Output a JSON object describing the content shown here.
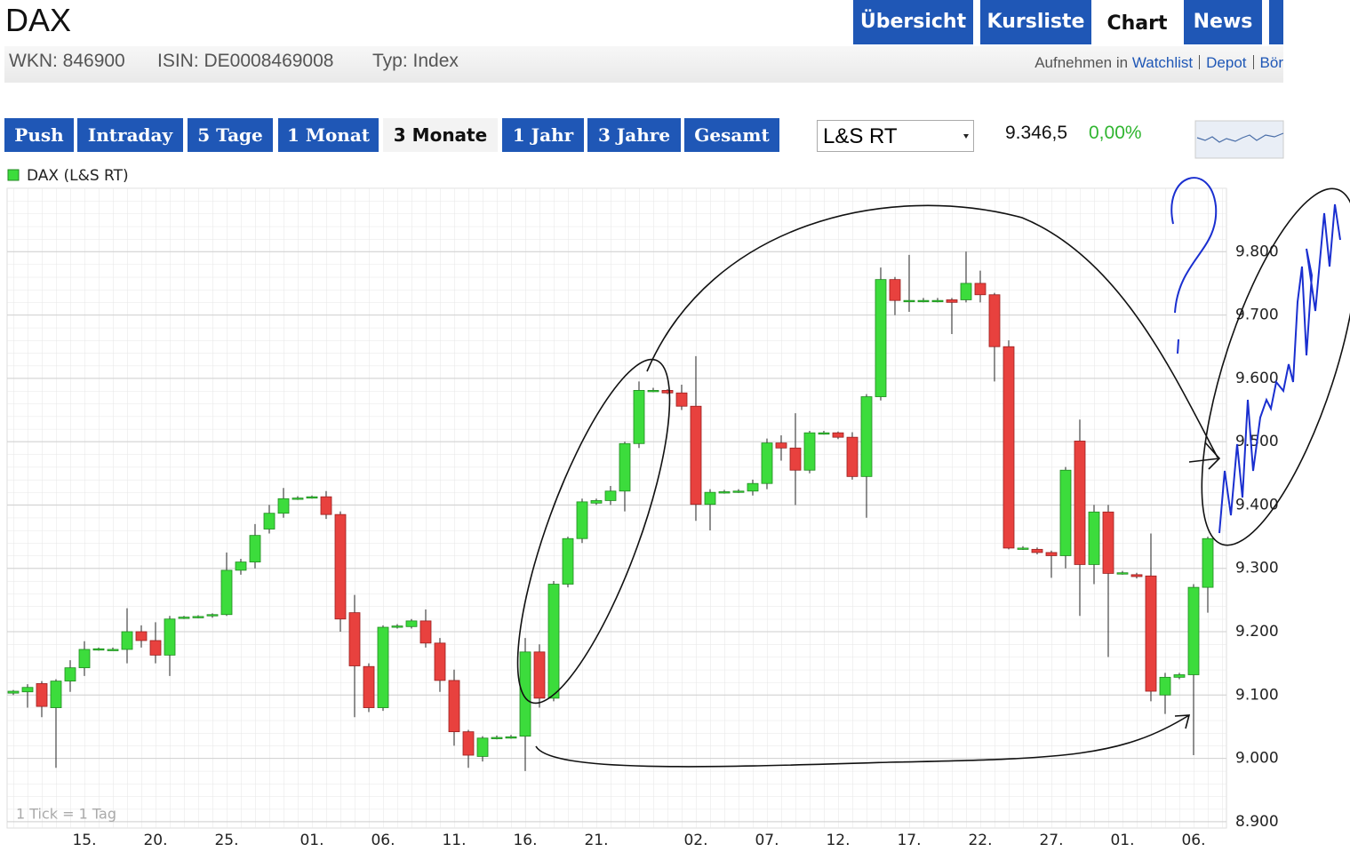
{
  "header": {
    "title": "DAX",
    "tabs": [
      {
        "label": "Übersicht",
        "active": false
      },
      {
        "label": "Kursliste",
        "active": false
      },
      {
        "label": "Chart",
        "active": true
      },
      {
        "label": "News",
        "active": false
      }
    ]
  },
  "info": {
    "wkn": "WKN: 846900",
    "isin": "ISIN: DE0008469008",
    "typ": "Typ: Index"
  },
  "actions": {
    "prefix": "Aufnehmen in",
    "links": [
      "Watchlist",
      "Depot",
      "Bör"
    ]
  },
  "toolbar": {
    "periods": [
      {
        "label": "Push",
        "active": false
      },
      {
        "label": "Intraday",
        "active": false
      },
      {
        "label": "5 Tage",
        "active": false
      },
      {
        "label": "1 Monat",
        "active": false
      },
      {
        "label": "3 Monate",
        "active": true
      },
      {
        "label": "1 Jahr",
        "active": false
      },
      {
        "label": "3 Jahre",
        "active": false
      },
      {
        "label": "Gesamt",
        "active": false
      }
    ],
    "exchange": "L&S RT",
    "price": "9.346,5",
    "change": "0,00%"
  },
  "chart_data": {
    "type": "candlestick",
    "note": "1 Tick = 1 Tag",
    "categories": [
      null,
      null,
      null,
      null,
      null,
      "15.",
      null,
      null,
      null,
      null,
      "20.",
      null,
      null,
      null,
      null,
      "25.",
      null,
      null,
      null,
      null,
      null,
      "01.",
      null,
      null,
      null,
      null,
      "06.",
      null,
      null,
      null,
      null,
      "11.",
      null,
      null,
      null,
      null,
      "16.",
      null,
      null,
      null,
      null,
      "21.",
      null,
      null,
      null,
      null,
      null,
      null,
      "02.",
      null,
      null,
      null,
      null,
      "07.",
      null,
      null,
      null,
      null,
      "12.",
      null,
      null,
      null,
      null,
      "17.",
      null,
      null,
      null,
      null,
      "22.",
      null,
      null,
      null,
      null,
      "27.",
      null,
      null,
      null,
      null,
      "01.",
      null,
      null,
      null,
      null,
      "06.",
      null
    ],
    "series": [
      {
        "name": "DAX (L&S RT)",
        "up_color": "#3cdc3c",
        "down_color": "#e8413e",
        "open": [
          9103,
          9105,
          9118,
          9080,
          9122,
          9143,
          9172,
          9172,
          9172,
          9200,
          9186,
          9163,
          9223,
          9224,
          9225,
          9227,
          9297,
          9310,
          9362,
          9387,
          9411,
          9413,
          9413,
          9385,
          9230,
          9145,
          9080,
          9209,
          9208,
          9217,
          9182,
          9123,
          9042,
          9003,
          9033,
          9034,
          9035,
          9168,
          9095,
          9275,
          9347,
          9403,
          9407,
          9422,
          9497,
          9581,
          9581,
          9577,
          9556,
          9401,
          9421,
          9422,
          9422,
          9434,
          9498,
          9490,
          9455,
          9514,
          9514,
          9507,
          9445,
          9571,
          9756,
          9723,
          9723,
          9723,
          9724,
          9724,
          9750,
          9732,
          9650,
          9332,
          9330,
          9325,
          9320,
          9501,
          9306,
          9389,
          9293,
          9290,
          9288,
          9100,
          9128,
          9132,
          9270
        ],
        "high": [
          9108,
          9117,
          9122,
          9125,
          9155,
          9185,
          9175,
          9175,
          9237,
          9210,
          9215,
          9225,
          9225,
          9226,
          9229,
          9325,
          9315,
          9370,
          9400,
          9427,
          9414,
          9415,
          9422,
          9390,
          9258,
          9150,
          9210,
          9212,
          9220,
          9235,
          9190,
          9140,
          9045,
          9035,
          9036,
          9037,
          9190,
          9180,
          9280,
          9350,
          9410,
          9410,
          9430,
          9500,
          9595,
          9585,
          9583,
          9590,
          9635,
          9425,
          9424,
          9425,
          9440,
          9505,
          9510,
          9545,
          9517,
          9517,
          9516,
          9515,
          9575,
          9775,
          9760,
          9795,
          9727,
          9727,
          9727,
          9800,
          9770,
          9735,
          9660,
          9335,
          9333,
          9328,
          9460,
          9535,
          9400,
          9400,
          9296,
          9293,
          9355,
          9135,
          9135,
          9275,
          9350
        ],
        "low": [
          9100,
          9080,
          9065,
          8985,
          9105,
          9130,
          9170,
          9170,
          9150,
          9175,
          9150,
          9130,
          9220,
          9221,
          9222,
          9225,
          9290,
          9300,
          9355,
          9380,
          9408,
          9410,
          9378,
          9200,
          9065,
          9073,
          9075,
          9205,
          9205,
          9175,
          9105,
          9020,
          8985,
          8995,
          9030,
          9031,
          8980,
          9080,
          9090,
          9270,
          9340,
          9400,
          9400,
          9390,
          9490,
          9578,
          9575,
          9550,
          9375,
          9360,
          9418,
          9419,
          9415,
          9425,
          9470,
          9400,
          9450,
          9511,
          9504,
          9440,
          9380,
          9565,
          9700,
          9705,
          9720,
          9720,
          9670,
          9720,
          9720,
          9595,
          9330,
          9329,
          9322,
          9285,
          9300,
          9225,
          9275,
          9160,
          9290,
          9284,
          9090,
          9070,
          9125,
          9005,
          9230
        ],
        "close": [
          9106,
          9112,
          9082,
          9122,
          9143,
          9172,
          9173,
          9172,
          9200,
          9186,
          9163,
          9220,
          9223,
          9224,
          9227,
          9297,
          9310,
          9352,
          9387,
          9410,
          9411,
          9413,
          9385,
          9220,
          9146,
          9080,
          9207,
          9209,
          9217,
          9182,
          9123,
          9042,
          9005,
          9032,
          9033,
          9034,
          9168,
          9095,
          9275,
          9347,
          9405,
          9407,
          9422,
          9497,
          9581,
          9581,
          9577,
          9556,
          9401,
          9420,
          9421,
          9422,
          9434,
          9498,
          9490,
          9455,
          9514,
          9514,
          9507,
          9445,
          9571,
          9756,
          9723,
          9723,
          9723,
          9723,
          9720,
          9750,
          9732,
          9650,
          9332,
          9332,
          9325,
          9320,
          9455,
          9306,
          9389,
          9292,
          9293,
          9287,
          9106,
          9128,
          9132,
          9270,
          9347
        ]
      }
    ],
    "ylim": [
      8890,
      9900
    ],
    "yticks": [
      {
        "value": 8900,
        "label": "8.900"
      },
      {
        "value": 9000,
        "label": "9.000"
      },
      {
        "value": 9100,
        "label": "9.100"
      },
      {
        "value": 9200,
        "label": "9.200"
      },
      {
        "value": 9300,
        "label": "9.300"
      },
      {
        "value": 9400,
        "label": "9.400"
      },
      {
        "value": 9500,
        "label": "9.500"
      },
      {
        "value": 9600,
        "label": "9.600"
      },
      {
        "value": 9700,
        "label": "9.700"
      },
      {
        "value": 9800,
        "label": "9.800"
      }
    ],
    "grid": true
  }
}
